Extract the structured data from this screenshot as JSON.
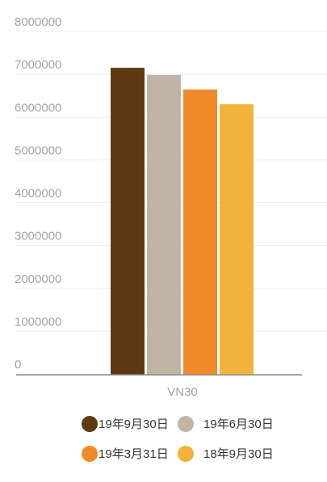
{
  "chart_data": {
    "type": "bar",
    "title": "",
    "xlabel": "",
    "ylabel": "",
    "categories": [
      "VN30"
    ],
    "ylim": [
      0,
      8000000
    ],
    "yticks": [
      0,
      1000000,
      2000000,
      3000000,
      4000000,
      5000000,
      6000000,
      7000000,
      8000000
    ],
    "ytick_labels": [
      "0",
      "1000000",
      "2000000",
      "3000000",
      "4000000",
      "5000000",
      "6000000",
      "7000000",
      "8000000"
    ],
    "grid": true,
    "legend_position": "bottom",
    "series": [
      {
        "name": "19年9月30日",
        "values": [
          7000000
        ],
        "color": "#5e3a14"
      },
      {
        "name": "19年6月30日",
        "values": [
          6840000
        ],
        "color": "#c2b4a5"
      },
      {
        "name": "19年3月31日",
        "values": [
          6510000
        ],
        "color": "#f28a2a"
      },
      {
        "name": "18年9月30日",
        "values": [
          6180000
        ],
        "color": "#f2b33c"
      }
    ]
  }
}
